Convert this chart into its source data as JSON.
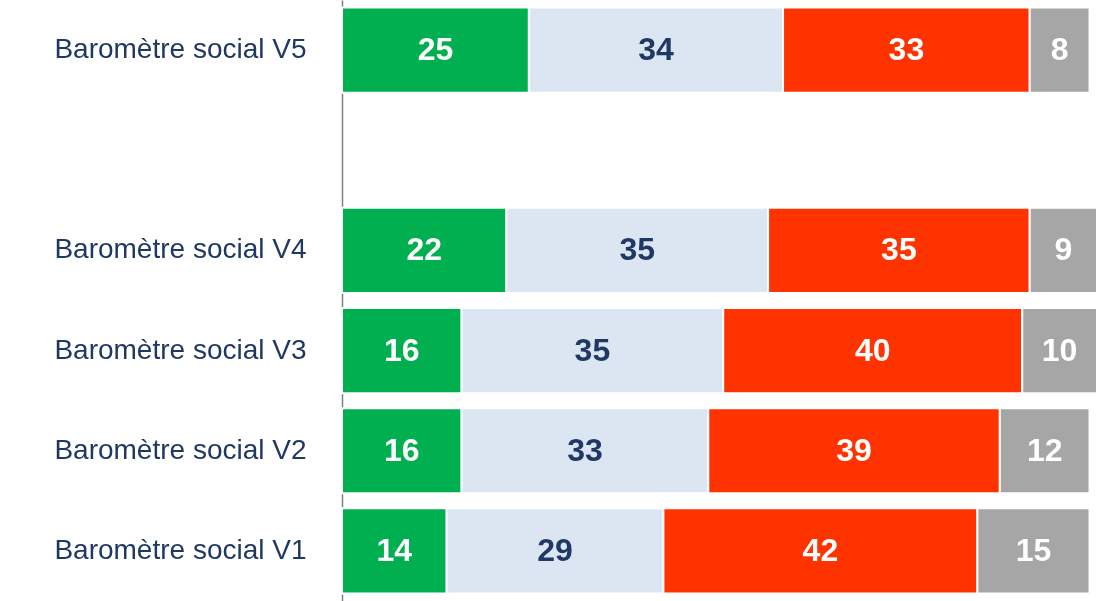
{
  "chart_data": {
    "type": "bar",
    "orientation": "horizontal",
    "stacked": true,
    "data_labels": true,
    "categories": [
      "Baromètre social V5",
      null,
      "Baromètre social V4",
      "Baromètre social V3",
      "Baromètre social V2",
      "Baromètre social V1"
    ],
    "series": [
      {
        "color": "#00b050",
        "values": [
          25,
          null,
          22,
          16,
          16,
          14
        ]
      },
      {
        "color": "#dce6f2",
        "values": [
          34,
          null,
          35,
          35,
          33,
          29
        ]
      },
      {
        "color": "#ff3300",
        "values": [
          33,
          null,
          35,
          40,
          39,
          42
        ]
      },
      {
        "color": "#a6a6a6",
        "values": [
          8,
          null,
          9,
          10,
          12,
          15
        ]
      }
    ]
  }
}
